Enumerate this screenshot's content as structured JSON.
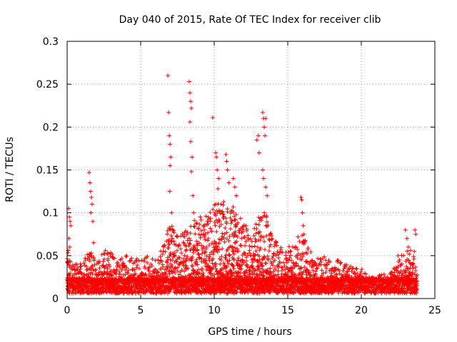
{
  "chart_data": {
    "type": "scatter",
    "title": "Day 040 of 2015, Rate Of TEC Index for receiver clib",
    "xlabel": "GPS time / hours",
    "ylabel": "ROTI / TECUs",
    "xlim": [
      0,
      25
    ],
    "ylim": [
      0,
      0.3
    ],
    "xticks": [
      0,
      5,
      10,
      15,
      20,
      25
    ],
    "yticks": [
      0,
      0.05,
      0.1,
      0.15,
      0.2,
      0.25,
      0.3
    ],
    "xtick_labels": [
      "0",
      "5",
      "10",
      "15",
      "20",
      "25"
    ],
    "ytick_labels": [
      "0",
      "0.05",
      "0.1",
      "0.15",
      "0.2",
      "0.25",
      "0.3"
    ],
    "grid": true,
    "marker": "+",
    "color": "#ff0000",
    "series": [
      {
        "name": "ROTI",
        "points": [
          [
            0.1,
            0.105
          ],
          [
            0.15,
            0.095
          ],
          [
            0.2,
            0.09
          ],
          [
            0.25,
            0.085
          ],
          [
            0.12,
            0.07
          ],
          [
            0.18,
            0.06
          ],
          [
            1.5,
            0.147
          ],
          [
            1.55,
            0.135
          ],
          [
            1.6,
            0.125
          ],
          [
            1.65,
            0.118
          ],
          [
            1.7,
            0.11
          ],
          [
            1.62,
            0.1
          ],
          [
            1.75,
            0.09
          ],
          [
            1.8,
            0.065
          ],
          [
            6.85,
            0.26
          ],
          [
            6.9,
            0.217
          ],
          [
            6.95,
            0.19
          ],
          [
            7.0,
            0.18
          ],
          [
            7.05,
            0.165
          ],
          [
            7.0,
            0.155
          ],
          [
            6.98,
            0.125
          ],
          [
            7.1,
            0.1
          ],
          [
            7.2,
            0.08
          ],
          [
            8.3,
            0.253
          ],
          [
            8.35,
            0.24
          ],
          [
            8.4,
            0.23
          ],
          [
            8.45,
            0.222
          ],
          [
            8.35,
            0.206
          ],
          [
            8.4,
            0.183
          ],
          [
            8.5,
            0.165
          ],
          [
            8.45,
            0.148
          ],
          [
            8.55,
            0.12
          ],
          [
            8.6,
            0.1
          ],
          [
            9.9,
            0.211
          ],
          [
            10.1,
            0.17
          ],
          [
            10.15,
            0.165
          ],
          [
            10.2,
            0.15
          ],
          [
            10.3,
            0.14
          ],
          [
            10.25,
            0.128
          ],
          [
            10.8,
            0.168
          ],
          [
            10.85,
            0.16
          ],
          [
            10.9,
            0.15
          ],
          [
            11.0,
            0.135
          ],
          [
            11.3,
            0.14
          ],
          [
            11.4,
            0.13
          ],
          [
            11.5,
            0.12
          ],
          [
            12.9,
            0.185
          ],
          [
            13.0,
            0.19
          ],
          [
            13.05,
            0.17
          ],
          [
            13.3,
            0.217
          ],
          [
            13.35,
            0.21
          ],
          [
            13.4,
            0.2
          ],
          [
            13.45,
            0.19
          ],
          [
            13.5,
            0.21
          ],
          [
            13.3,
            0.15
          ],
          [
            13.35,
            0.14
          ],
          [
            13.5,
            0.13
          ],
          [
            13.6,
            0.12
          ],
          [
            13.4,
            0.1
          ],
          [
            13.55,
            0.095
          ],
          [
            15.9,
            0.118
          ],
          [
            15.95,
            0.115
          ],
          [
            16.0,
            0.1
          ],
          [
            16.05,
            0.085
          ],
          [
            16.1,
            0.075
          ],
          [
            22.5,
            0.05
          ],
          [
            22.6,
            0.045
          ],
          [
            23.0,
            0.08
          ],
          [
            23.1,
            0.07
          ],
          [
            23.2,
            0.06
          ],
          [
            23.65,
            0.08
          ],
          [
            23.7,
            0.075
          ],
          [
            23.6,
            0.055
          ]
        ],
        "dense_band": {
          "x_range": [
            0,
            23.8
          ],
          "description": "continuous cloud of points between 0.005 and the local envelope",
          "envelope": [
            [
              0,
              0.06
            ],
            [
              0.5,
              0.045
            ],
            [
              1.0,
              0.04
            ],
            [
              1.5,
              0.06
            ],
            [
              2.0,
              0.045
            ],
            [
              2.5,
              0.06
            ],
            [
              3.0,
              0.055
            ],
            [
              3.5,
              0.045
            ],
            [
              4.0,
              0.05
            ],
            [
              4.5,
              0.05
            ],
            [
              5.0,
              0.045
            ],
            [
              5.5,
              0.05
            ],
            [
              6.0,
              0.045
            ],
            [
              6.5,
              0.06
            ],
            [
              7.0,
              0.09
            ],
            [
              7.5,
              0.075
            ],
            [
              8.0,
              0.08
            ],
            [
              8.5,
              0.09
            ],
            [
              9.0,
              0.095
            ],
            [
              9.5,
              0.1
            ],
            [
              10.0,
              0.11
            ],
            [
              10.5,
              0.12
            ],
            [
              11.0,
              0.11
            ],
            [
              11.5,
              0.105
            ],
            [
              12.0,
              0.09
            ],
            [
              12.5,
              0.08
            ],
            [
              13.0,
              0.095
            ],
            [
              13.5,
              0.1
            ],
            [
              14.0,
              0.075
            ],
            [
              14.5,
              0.06
            ],
            [
              15.0,
              0.06
            ],
            [
              15.5,
              0.07
            ],
            [
              16.0,
              0.08
            ],
            [
              16.5,
              0.055
            ],
            [
              17.0,
              0.05
            ],
            [
              17.5,
              0.05
            ],
            [
              18.0,
              0.045
            ],
            [
              18.5,
              0.045
            ],
            [
              19.0,
              0.04
            ],
            [
              19.5,
              0.035
            ],
            [
              20.0,
              0.035
            ],
            [
              20.5,
              0.025
            ],
            [
              21.0,
              0.025
            ],
            [
              21.5,
              0.03
            ],
            [
              22.0,
              0.03
            ],
            [
              22.5,
              0.05
            ],
            [
              23.0,
              0.055
            ],
            [
              23.5,
              0.06
            ],
            [
              23.8,
              0.04
            ]
          ]
        }
      }
    ]
  }
}
